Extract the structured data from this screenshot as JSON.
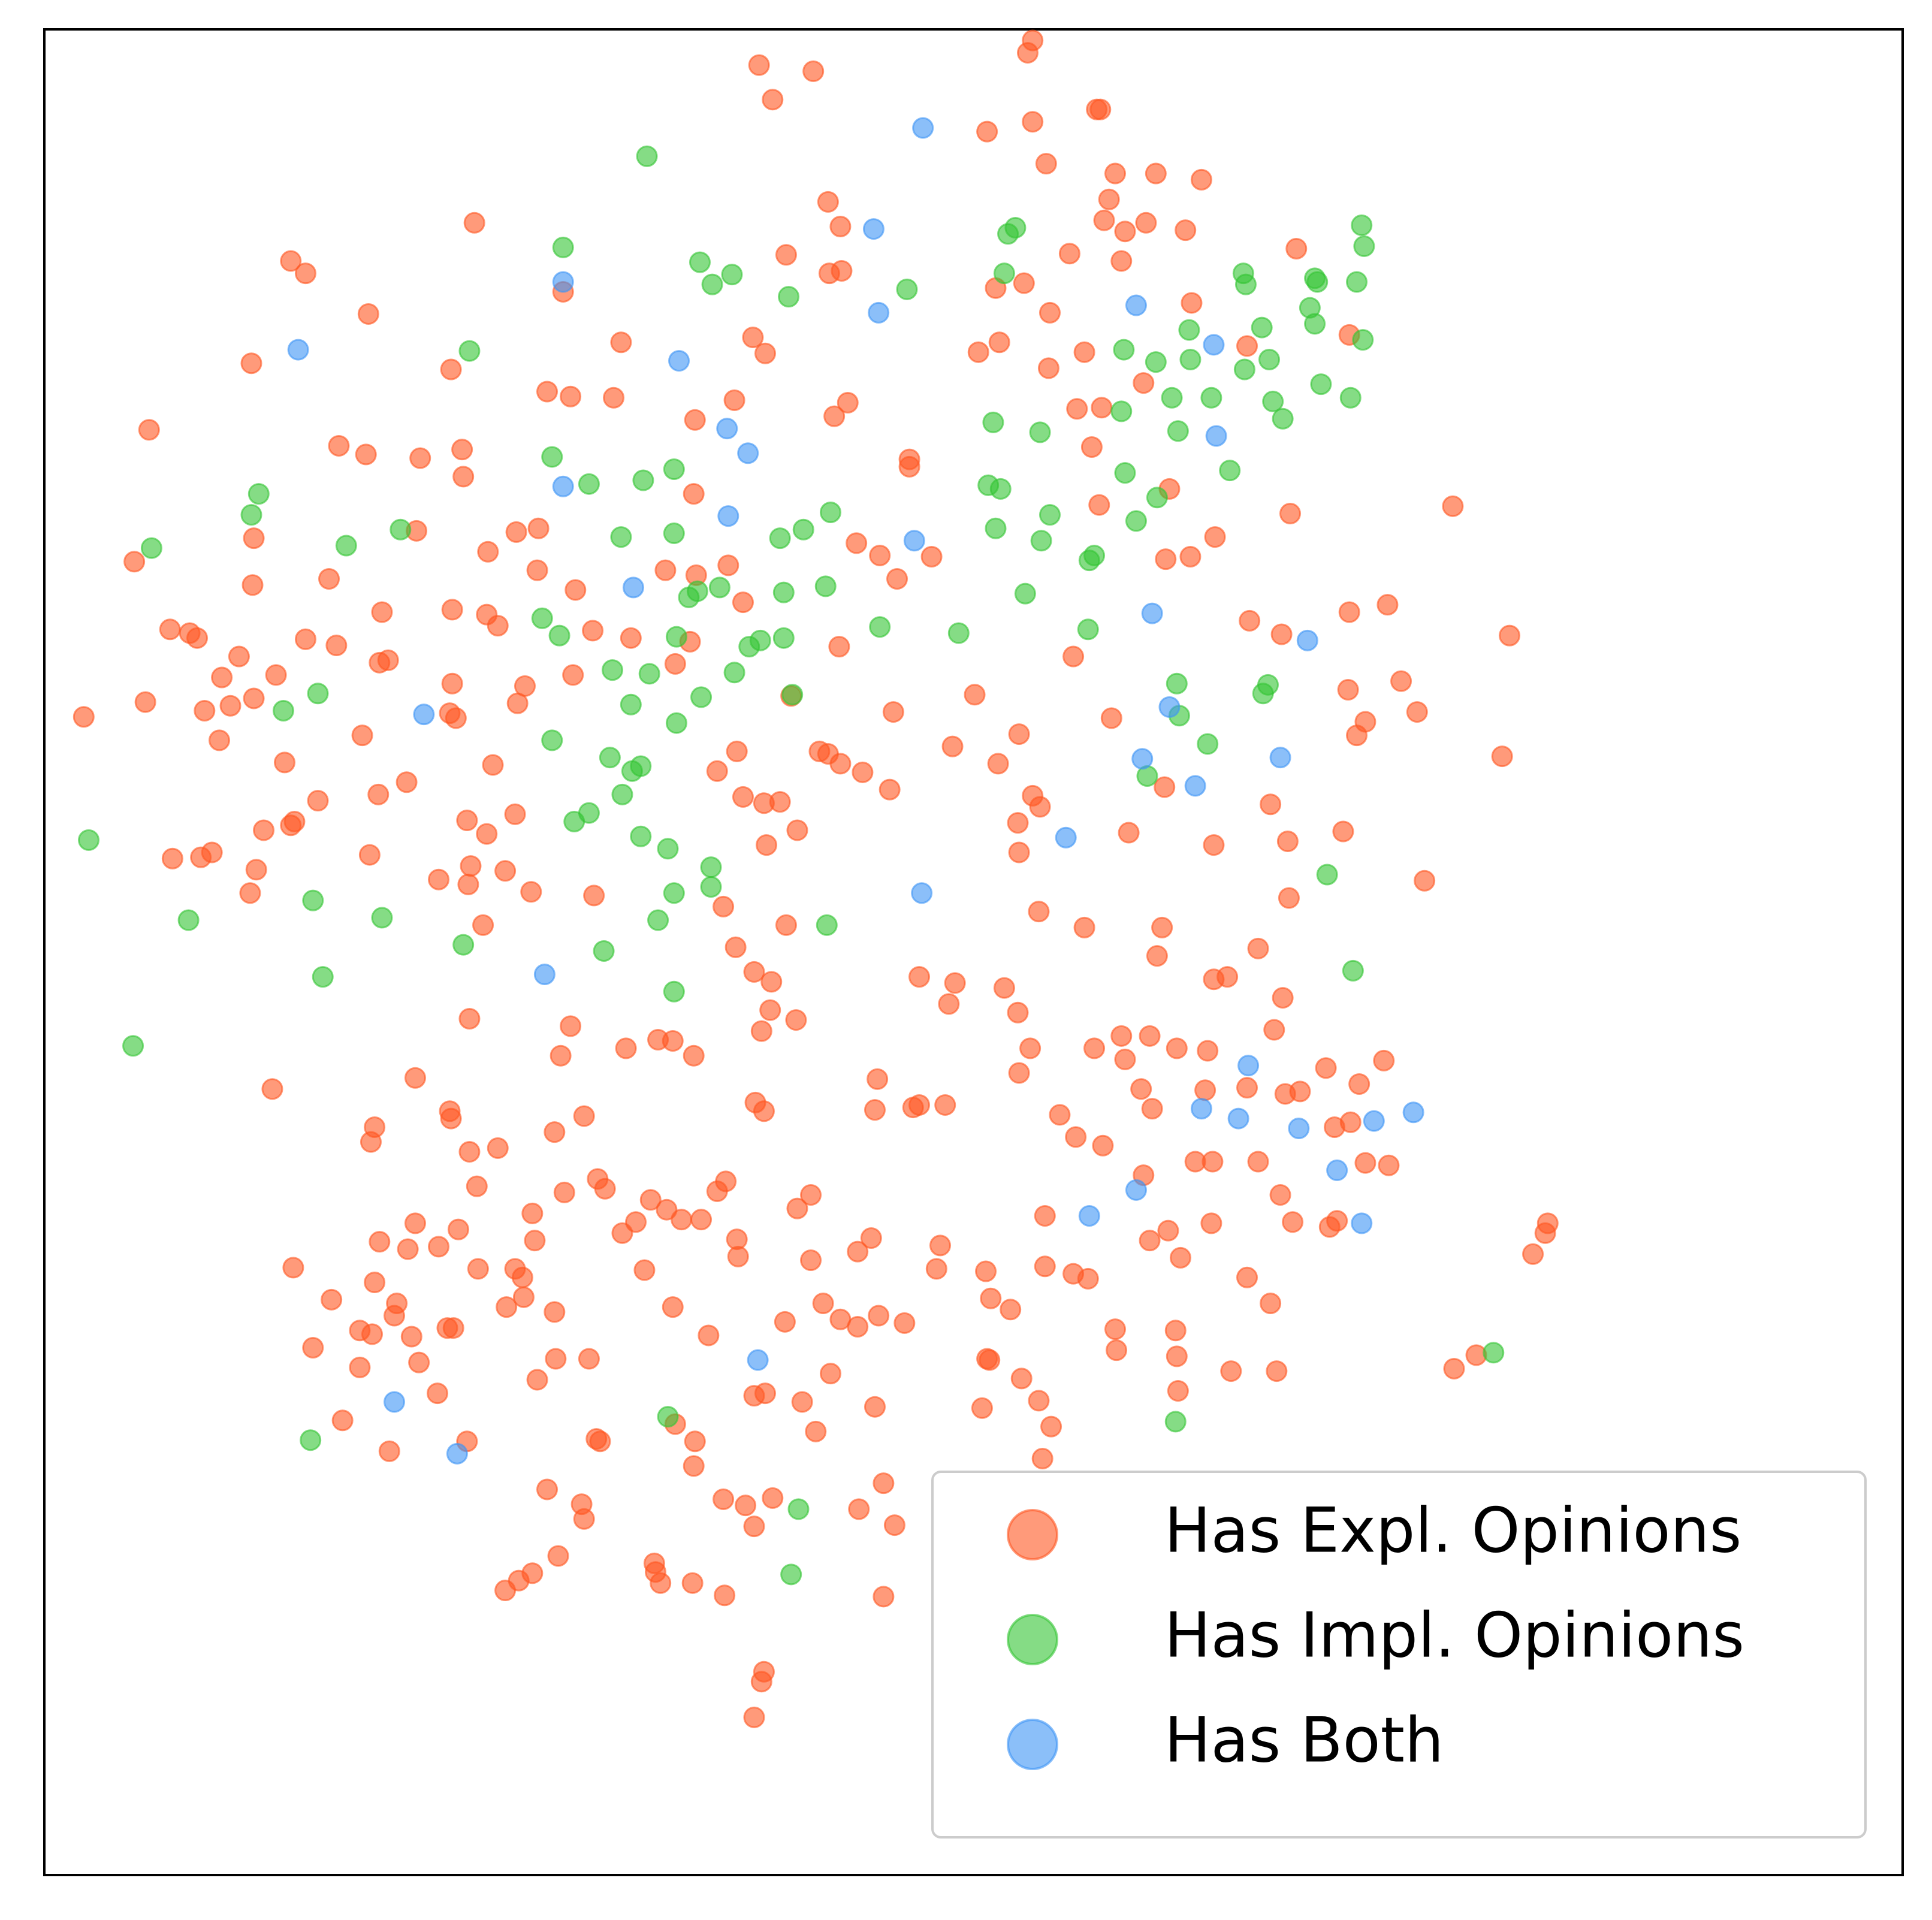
{
  "chart_data": {
    "type": "scatter",
    "xlim": [
      36,
      1544
    ],
    "ylim": [
      -1522,
      -24
    ],
    "legend": "lower right",
    "series": [
      {
        "name": "Has Expl. Opinions",
        "color": "#ff5722",
        "x": [
          838,
          834,
          616,
          660,
          627,
          890,
          893,
          838,
          801,
          849,
          905,
          938,
          975,
          900,
          672,
          896,
          682,
          913,
          930,
          962,
          385,
          236,
          248,
          638,
          868,
          910,
          1052,
          683,
          673,
          808,
          831,
          457,
          299,
          852,
          967,
          504,
          611,
          621,
          794,
          811,
          880,
          1095,
          204,
          366,
          851,
          928,
          1012,
          444,
          463,
          498,
          596,
          677,
          688,
          874,
          894,
          564,
          121,
          275,
          297,
          341,
          375,
          376,
          738,
          738,
          886,
          1179,
          1047,
          949,
          892,
          563,
          206,
          338,
          419,
          437,
          396,
          695,
          714,
          756,
          946,
          966,
          986,
          109,
          205,
          267,
          436,
          467,
          540,
          565,
          591,
          603,
          728,
          310,
          367,
          395,
          404,
          481,
          512,
          560,
          681,
          138,
          154,
          160,
          194,
          248,
          273,
          308,
          315,
          548,
          465,
          1014,
          1040,
          1095,
          1126,
          1225,
          871,
          180,
          224,
          118,
          166,
          187,
          206,
          68,
          178,
          294,
          367,
          426,
          420,
          365,
          370,
          642,
          725,
          791,
          902,
          1094,
          1137,
          1150,
          1108,
          1101,
          231,
          258,
          330,
          307,
          400,
          582,
          598,
          665,
          672,
          682,
          700,
          722,
          773,
          810,
          827,
          945,
          1031,
          1090,
          1045,
          985,
          916,
          838,
          844,
          826,
          827,
          214,
          239,
          236,
          379,
          418,
          395,
          603,
          620,
          633,
          647,
          622,
          140,
          163,
          172,
          208,
          203,
          300,
          356,
          380,
          382,
          410,
          431,
          482,
          587,
          638,
          392,
          843,
          880,
          943,
          939,
          1021,
          1046,
          1156,
          1219,
          597,
          612,
          626,
          746,
          775,
          770,
          815,
          826,
          1041,
          985,
          996,
          1034,
          381,
          463,
          455,
          508,
          534,
          546,
          563,
          625,
          618,
          646,
          836,
          827,
          888,
          910,
          933,
          955,
          980,
          913,
          221,
          337,
          365,
          366,
          304,
          301,
          381,
          404,
          450,
          474,
          613,
          620,
          712,
          710,
          741,
          746,
          767,
          860,
          873,
          895,
          926,
          935,
          978,
          1012,
          1043,
          1055,
          1076,
          1103,
          1123,
          1083,
          1096,
          1108,
          1127,
          970,
          984,
          1021,
          928,
          1039,
          1049,
          1079,
          1085,
          983,
          948,
          933,
          958,
          848,
          387,
          458,
          485,
          491,
          528,
          541,
          516,
          553,
          569,
          582,
          589,
          647,
          658,
          308,
          331,
          337,
          356,
          372,
          432,
          434,
          505,
          238,
          269,
          304,
          322,
          320,
          292,
          302,
          334,
          363,
          368,
          388,
          418,
          424,
          425,
          411,
          450,
          523,
          546,
          598,
          599,
          658,
          696,
          707,
          763,
          760,
          800,
          804,
          820,
          848,
          871,
          883,
          905,
          906,
          954,
          955,
          956,
          1012,
          1031,
          999,
          1036,
          1180,
          1198,
          1244,
          1254,
          1256,
          254,
          292,
          340,
          355,
          436,
          451,
          478,
          575,
          637,
          668,
          682,
          696,
          713,
          734,
          674,
          801,
          803,
          829,
          843,
          797,
          853,
          278,
          316,
          379,
          484,
          487,
          548,
          564,
          563,
          612,
          621,
          651,
          662,
          710,
          846,
          444,
          472,
          474,
          587,
          605,
          612,
          627,
          697,
          717,
          726,
          453,
          410,
          421,
          432,
          531,
          532,
          536,
          562,
          588,
          717,
          620,
          618,
          612
        ],
        "values": [
          -33,
          -43,
          -53,
          -58,
          -81,
          -89,
          -89,
          -99,
          -107,
          -133,
          -141,
          -141,
          -146,
          -162,
          -164,
          -179,
          -184,
          -188,
          -181,
          -187,
          -181,
          -212,
          -222,
          -207,
          -206,
          -212,
          -202,
          -220,
          -222,
          -234,
          -230,
          -237,
          -255,
          -254,
          -246,
          -278,
          -274,
          -287,
          -286,
          -278,
          -286,
          -272,
          -295,
          -300,
          -299,
          -311,
          -281,
          -318,
          -322,
          -323,
          -325,
          -338,
          -327,
          -332,
          -331,
          -341,
          -349,
          -362,
          -369,
          -372,
          -365,
          -387,
          -373,
          -379,
          -363,
          -411,
          -417,
          -397,
          -410,
          -401,
          -437,
          -431,
          -432,
          -429,
          -448,
          -441,
          -451,
          -452,
          -454,
          -452,
          -436,
          -456,
          -475,
          -470,
          -463,
          -479,
          -463,
          -467,
          -459,
          -489,
          -470,
          -497,
          -495,
          -499,
          -508,
          -512,
          -518,
          -521,
          -525,
          -511,
          -514,
          -518,
          -533,
          -519,
          -524,
          -538,
          -536,
          -539,
          -548,
          -504,
          -515,
          -497,
          -491,
          -516,
          -533,
          -550,
          -548,
          -570,
          -577,
          -573,
          -567,
          -582,
          -601,
          -597,
          -555,
          -557,
          -571,
          -579,
          -583,
          -565,
          -578,
          -564,
          -583,
          -560,
          -553,
          -578,
          -586,
          -597,
          -619,
          -650,
          -635,
          -645,
          -621,
          -626,
          -610,
          -610,
          -612,
          -620,
          -627,
          -641,
          -606,
          -620,
          -596,
          -639,
          -653,
          -675,
          -683,
          -686,
          -676,
          -646,
          -655,
          -668,
          -692,
          -674,
          -667,
          -670,
          -666,
          -661,
          -677,
          -647,
          -652,
          -651,
          -674,
          -686,
          -697,
          -696,
          -692,
          -706,
          -725,
          -694,
          -714,
          -718,
          -703,
          -707,
          -724,
          -727,
          -736,
          -751,
          -751,
          -740,
          -753,
          -753,
          -776,
          -770,
          -729,
          -715,
          -614,
          -769,
          -789,
          -797,
          -793,
          -798,
          -815,
          -802,
          -822,
          -810,
          -795,
          -793,
          -836,
          -827,
          -833,
          -857,
          -851,
          -844,
          -845,
          -857,
          -820,
          -837,
          -828,
          -851,
          -871,
          -851,
          -841,
          -841,
          -851,
          -853,
          -860,
          -884,
          -875,
          -902,
          -908,
          -915,
          -927,
          -935,
          -932,
          -919,
          -906,
          -895,
          -902,
          -876,
          -901,
          -899,
          -897,
          -897,
          -905,
          -923,
          -930,
          -884,
          -900,
          -885,
          -883,
          -888,
          -886,
          -867,
          -880,
          -861,
          -915,
          -911,
          -944,
          -946,
          -943,
          -943,
          -943,
          -954,
          -970,
          -992,
          -996,
          -991,
          -993,
          -999,
          -1007,
          -1021,
          -987,
          -963,
          -968,
          -957,
          -965,
          -974,
          -982,
          -992,
          -990,
          -990,
          -967,
          -959,
          -981,
          -970,
          -1008,
          -1014,
          -993,
          -1012,
          -998,
          -985,
          -1007,
          -1001,
          -1029,
          -1055,
          -1041,
          -1058,
          -1068,
          -1080,
          -1083,
          -1085,
          -1078,
          -1078,
          -1030,
          -1030,
          -1037,
          -1053,
          -1061,
          -1065,
          -1031,
          -1061,
          -1006,
          -1020,
          -1023,
          -1016,
          -1005,
          -1011,
          -1030,
          -1032,
          -1054,
          -1063,
          -1028,
          -1034,
          -1038,
          -1079,
          -1096,
          -1080,
          -1101,
          -1129,
          -1037,
          -1058,
          -1113,
          -1113,
          -1111,
          -1100,
          -1018,
          -1001,
          -993,
          -1094,
          -1110,
          -1106,
          -1131,
          -1120,
          -1103,
          -1103,
          -1084,
          -1073,
          -1058,
          -1071,
          -1077,
          -1068,
          -1074,
          -1115,
          -1103,
          -1104,
          -1119,
          -1137,
          -1143,
          -1158,
          -1153,
          -1178,
          -1170,
          -1168,
          -1170,
          -1156,
          -1170,
          -1190,
          -1133,
          -1131,
          -1138,
          -1162,
          -1142,
          -1184,
          -1209,
          -1221,
          -1233,
          -1217,
          -1222,
          -1239,
          -1216,
          -1225,
          -1204,
          -1238,
          -1263,
          -1291,
          -1283,
          -1277,
          -1269,
          -1276,
          -1285,
          -1285,
          -1295,
          -1296,
          -1357,
          -1365,
          -1394
        ]
      },
      {
        "name": "Has Impl. Opinions",
        "color": "#33c433",
        "x": [
          525,
          457,
          568,
          594,
          578,
          640,
          736,
          818,
          824,
          815,
          1105,
          1107,
          1009,
          1011,
          1067,
          1069,
          1101,
          1063,
          1067,
          1106,
          965,
          1024,
          912,
          938,
          966,
          1030,
          1010,
          951,
          983,
          1033,
          1072,
          1096,
          1041,
          910,
          806,
          844,
          956,
          381,
          448,
          478,
          522,
          547,
          913,
          998,
          802,
          812,
          852,
          939,
          922,
          808,
          845,
          884,
          888,
          832,
          883,
          674,
          652,
          633,
          547,
          504,
          210,
          204,
          123,
          281,
          325,
          440,
          454,
          559,
          584,
          566,
          636,
          670,
          714,
          778,
          549,
          608,
          617,
          636,
          596,
          497,
          527,
          569,
          512,
          549,
          643,
          230,
          258,
          448,
          495,
          513,
          520,
          505,
          478,
          466,
          955,
          1029,
          1025,
          957,
          980,
          931,
          520,
          542,
          577,
          577,
          547,
          534,
          671,
          490,
          376,
          310,
          254,
          153,
          72,
          262,
          547,
          108,
          1077,
          1098,
          1212,
          954,
          542,
          252,
          648,
          642
        ],
        "values": [
          -127,
          -201,
          -213,
          -223,
          -231,
          -241,
          -235,
          -190,
          -185,
          -222,
          -183,
          -200,
          -222,
          -231,
          -226,
          -229,
          -229,
          -250,
          -263,
          -276,
          -268,
          -266,
          -284,
          -294,
          -292,
          -292,
          -300,
          -323,
          -323,
          -326,
          -312,
          -323,
          -340,
          -334,
          -343,
          -351,
          -350,
          -285,
          -371,
          -393,
          -390,
          -381,
          -384,
          -382,
          -394,
          -397,
          -418,
          -404,
          -423,
          -429,
          -439,
          -455,
          -451,
          -482,
          -511,
          -416,
          -430,
          -437,
          -433,
          -436,
          -401,
          -418,
          -445,
          -443,
          -430,
          -502,
          -516,
          -485,
          -477,
          -480,
          -481,
          -476,
          -509,
          -514,
          -517,
          -525,
          -520,
          -518,
          -546,
          -544,
          -547,
          -566,
          -572,
          -587,
          -564,
          -577,
          -563,
          -601,
          -615,
          -626,
          -622,
          -645,
          -660,
          -667,
          -555,
          -556,
          -563,
          -581,
          -604,
          -630,
          -679,
          -689,
          -704,
          -720,
          -725,
          -747,
          -751,
          -772,
          -767,
          -745,
          -731,
          -747,
          -682,
          -793,
          -805,
          -849,
          -710,
          -788,
          -1098,
          -1154,
          -1150,
          -1169,
          -1225,
          -1278
        ]
      },
      {
        "name": "Has Both",
        "color": "#3d94f5",
        "x": [
          749,
          709,
          457,
          713,
          242,
          551,
          922,
          985,
          590,
          607,
          987,
          457,
          591,
          742,
          514,
          935,
          1061,
          344,
          949,
          927,
          1039,
          970,
          865,
          748,
          442,
          1013,
          975,
          1005,
          1054,
          1115,
          1147,
          1085,
          922,
          884,
          1105,
          615,
          320,
          371
        ],
        "values": [
          -104,
          -186,
          -229,
          -254,
          -284,
          -293,
          -248,
          -280,
          -348,
          -368,
          -354,
          -395,
          -419,
          -439,
          -477,
          -498,
          -520,
          -580,
          -574,
          -616,
          -615,
          -638,
          -680,
          -725,
          -791,
          -865,
          -900,
          -908,
          -916,
          -910,
          -903,
          -950,
          -966,
          -987,
          -993,
          -1104,
          -1138,
          -1180
        ]
      }
    ]
  }
}
